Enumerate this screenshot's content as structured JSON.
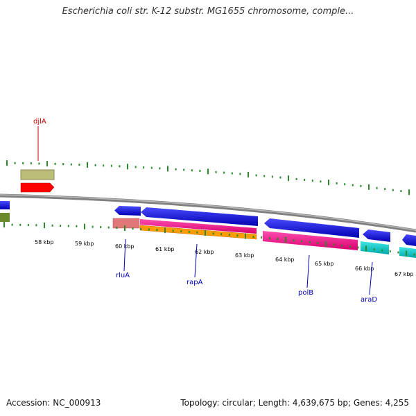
{
  "header": {
    "title": "Escherichia coli str. K-12 substr. MG1655 chromosome, comple..."
  },
  "footer": {
    "accession": "Accession: NC_000913",
    "summary": "Topology: circular; Length: 4,639,675 bp; Genes: 4,255"
  },
  "map": {
    "ticks_kbp": [
      "58 kbp",
      "59 kbp",
      "60 kbp",
      "61 kbp",
      "62 kbp",
      "63 kbp",
      "64 kbp",
      "65 kbp",
      "66 kbp",
      "67 kbp"
    ],
    "gene_labels": {
      "djlA": "djlA",
      "rluA": "rluA",
      "rapA": "rapA",
      "polB": "polB",
      "araD": "araD"
    }
  },
  "colors": {
    "backbone": "#808080",
    "tick": "#2a8a2a",
    "cds": "#0000ee",
    "olive": "#bdbd7a",
    "red": "#ff0000",
    "salmon": "#e07878",
    "magenta": "#ff1493",
    "orange": "#ff9c00",
    "cyan": "#00d0d0",
    "label_red": "#cc0000",
    "label_blue": "#0000bb"
  }
}
